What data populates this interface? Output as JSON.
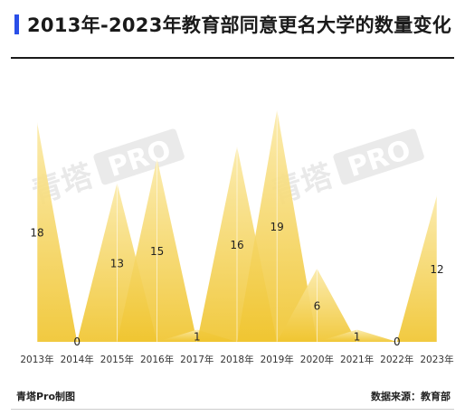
{
  "header": {
    "title": "2013年-2023年教育部同意更名大学的数量变化"
  },
  "chart_data": {
    "type": "area",
    "title": "2013年-2023年教育部同意更名大学的数量变化",
    "categories": [
      "2013年",
      "2014年",
      "2015年",
      "2016年",
      "2017年",
      "2018年",
      "2019年",
      "2020年",
      "2021年",
      "2022年",
      "2023年"
    ],
    "series": [
      {
        "values": [
          18,
          0,
          13,
          15,
          1,
          16,
          19,
          6,
          1,
          0,
          12
        ]
      }
    ],
    "xlabel": "",
    "ylabel": "",
    "ylim": [
      0,
      20
    ],
    "grid": false,
    "legend": "none",
    "colors": {
      "fill_top": "#fbeaa8",
      "fill_bottom": "#f0c530",
      "label": "#222222",
      "watermark": "#d8d8d8"
    }
  },
  "watermark": {
    "text_cn": "青塔",
    "badge": "PRO"
  },
  "footer": {
    "credit": "青塔Pro制图",
    "source": "数据来源：教育部"
  }
}
